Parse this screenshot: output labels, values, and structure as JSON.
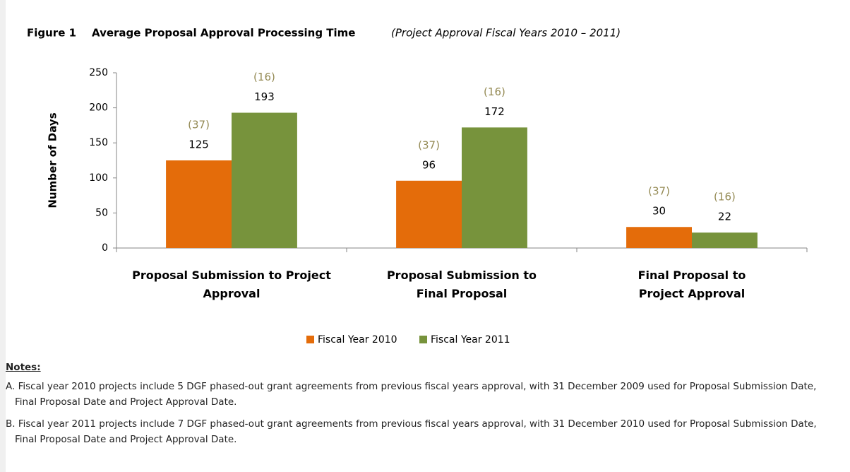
{
  "chart_data": {
    "type": "bar",
    "figure_label": "Figure 1",
    "title": "Average Proposal Approval Processing Time",
    "subtitle": "(Project Approval Fiscal Years 2010 – 2011)",
    "y_label": "Number of Days",
    "categories": [
      "Proposal Submission to Project Approval",
      "Proposal Submission to Final Proposal",
      "Final Proposal to Project Approval"
    ],
    "series": [
      {
        "name": "Fiscal Year 2010",
        "color": "#e46c0a",
        "values": [
          125,
          96,
          30
        ],
        "count_labels": [
          "(37)",
          "(37)",
          "(37)"
        ]
      },
      {
        "name": "Fiscal Year 2011",
        "color": "#77933c",
        "values": [
          193,
          172,
          22
        ],
        "count_labels": [
          "(16)",
          "(16)",
          "(16)"
        ]
      }
    ],
    "ylim": [
      0,
      250
    ],
    "yticks": [
      0,
      50,
      100,
      150,
      200,
      250
    ],
    "grid": false,
    "legend": "bottom"
  },
  "notes": {
    "heading": "Notes:",
    "items": [
      "A. Fiscal year 2010 projects include 5 DGF phased-out grant agreements from previous fiscal years approval, with 31 December 2009 used for Proposal Submission Date, Final Proposal Date and Project Approval Date.",
      "B. Fiscal year 2011 projects include 7 DGF phased-out grant agreements from previous fiscal years approval, with 31 December 2010 used for Proposal Submission Date, Final Proposal Date and Project Approval Date."
    ]
  }
}
